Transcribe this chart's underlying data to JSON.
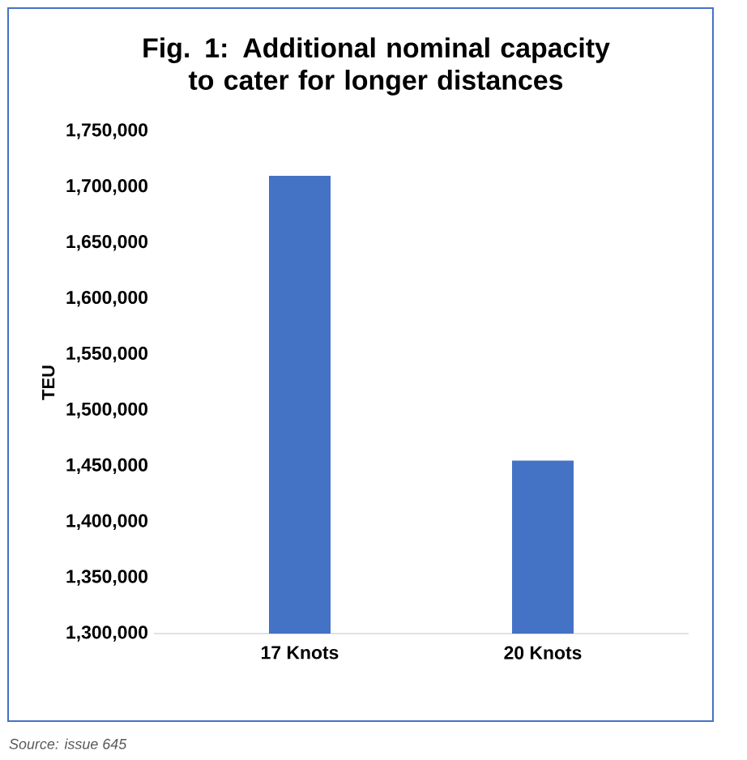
{
  "chart_data": {
    "type": "bar",
    "title": "Fig. 1: Additional nominal capacity to cater for longer distances",
    "ylabel": "TEU",
    "categories": [
      "17 Knots",
      "20 Knots"
    ],
    "values": [
      1710000,
      1455000
    ],
    "color": "#4472c4",
    "ylim": [
      1300000,
      1750000
    ],
    "yticks": [
      {
        "value": 1300000,
        "label": "1,300,000"
      },
      {
        "value": 1350000,
        "label": "1,350,000"
      },
      {
        "value": 1400000,
        "label": "1,400,000"
      },
      {
        "value": 1450000,
        "label": "1,450,000"
      },
      {
        "value": 1500000,
        "label": "1,500,000"
      },
      {
        "value": 1550000,
        "label": "1,550,000"
      },
      {
        "value": 1600000,
        "label": "1,600,000"
      },
      {
        "value": 1650000,
        "label": "1,650,000"
      },
      {
        "value": 1700000,
        "label": "1,700,000"
      },
      {
        "value": 1750000,
        "label": "1,750,000"
      }
    ],
    "grid": false,
    "annotations": [
      "Source: issue 645"
    ]
  }
}
